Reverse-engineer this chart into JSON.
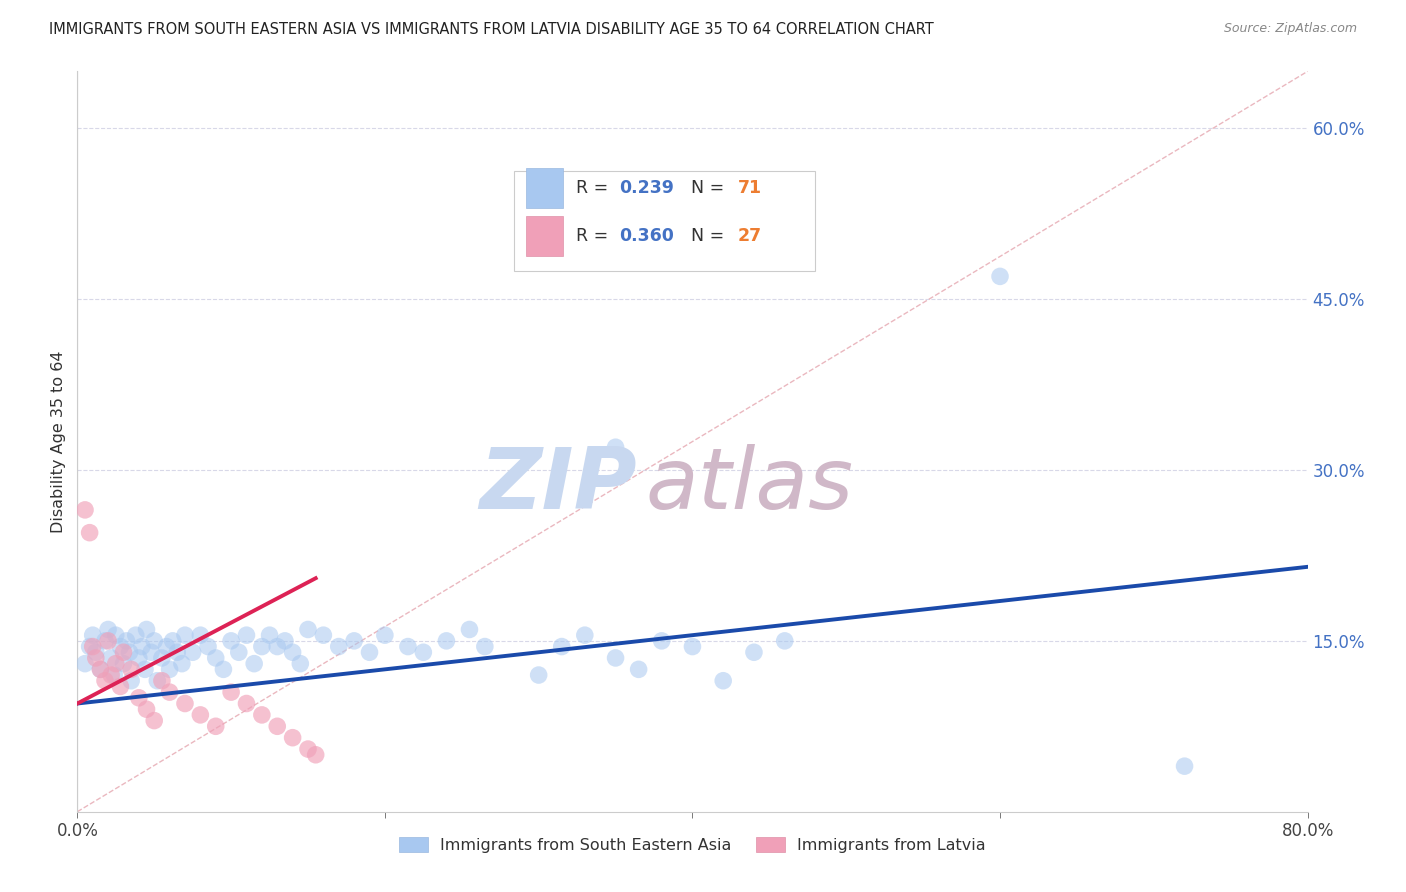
{
  "title": "IMMIGRANTS FROM SOUTH EASTERN ASIA VS IMMIGRANTS FROM LATVIA DISABILITY AGE 35 TO 64 CORRELATION CHART",
  "source": "Source: ZipAtlas.com",
  "ylabel": "Disability Age 35 to 64",
  "series1_label": "Immigrants from South Eastern Asia",
  "series1_color": "#a8c8f0",
  "series2_label": "Immigrants from Latvia",
  "series2_color": "#f0a0b8",
  "xlim": [
    0.0,
    0.8
  ],
  "ylim": [
    0.0,
    0.65
  ],
  "ytick_right_values": [
    0.15,
    0.3,
    0.45,
    0.6
  ],
  "ytick_right_labels": [
    "15.0%",
    "30.0%",
    "45.0%",
    "60.0%"
  ],
  "blue_trendline_x": [
    0.0,
    0.8
  ],
  "blue_trendline_y": [
    0.095,
    0.215
  ],
  "pink_trendline_x": [
    0.0,
    0.155
  ],
  "pink_trendline_y": [
    0.095,
    0.205
  ],
  "diag_line_x": [
    0.0,
    0.8
  ],
  "diag_line_y": [
    0.0,
    0.65
  ],
  "blue_line_color": "#1a4aaa",
  "pink_line_color": "#dd2255",
  "diag_line_color": "#e8b0b8",
  "watermark_zip_color": "#c8d8f0",
  "watermark_atlas_color": "#d0b8c8",
  "background_color": "#ffffff",
  "grid_color": "#d8d8e8"
}
